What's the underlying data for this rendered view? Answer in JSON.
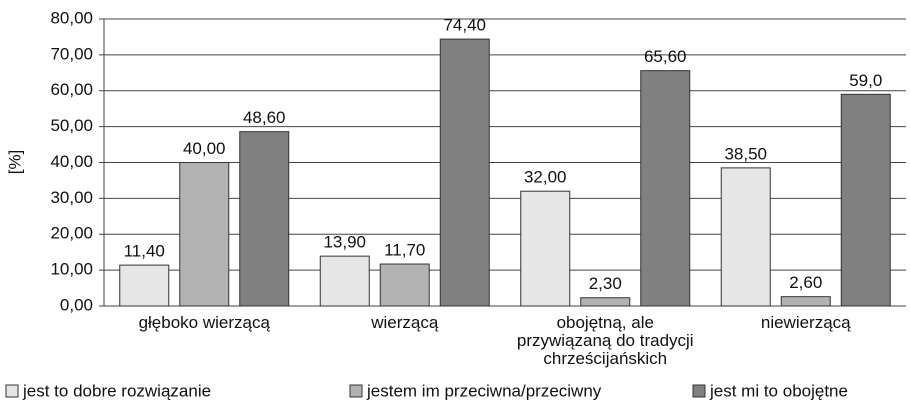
{
  "chart_data": {
    "type": "bar",
    "y_label": "[%]",
    "categories": [
      "głęboko wierzącą",
      "wierzącą",
      "obojętną, ale przywiązaną do tradycji chrześcijańskich",
      "niewierzącą"
    ],
    "series": [
      {
        "name": "jest to dobre rozwiązanie",
        "color": "#e6e6e6",
        "values": [
          11.4,
          13.9,
          32.0,
          38.5
        ],
        "value_labels": [
          "11,40",
          "13,90",
          "32,00",
          "38,50"
        ]
      },
      {
        "name": "jestem im przeciwna/przeciwny",
        "color": "#b2b2b2",
        "values": [
          40.0,
          11.7,
          2.3,
          2.6
        ],
        "value_labels": [
          "40,00",
          "11,70",
          "2,30",
          "2,60"
        ]
      },
      {
        "name": "jest mi to obojętne",
        "color": "#808080",
        "values": [
          48.6,
          74.4,
          65.6,
          59.0
        ],
        "value_labels": [
          "48,60",
          "74,40",
          "65,60",
          "59,0"
        ]
      }
    ],
    "ylim": [
      0,
      80
    ],
    "yticks": [
      {
        "value": 0,
        "label": "0,00"
      },
      {
        "value": 10,
        "label": "10,00"
      },
      {
        "value": 20,
        "label": "20,00"
      },
      {
        "value": 30,
        "label": "30,00"
      },
      {
        "value": 40,
        "label": "40,00"
      },
      {
        "value": 50,
        "label": "50,00"
      },
      {
        "value": 60,
        "label": "60,00"
      },
      {
        "value": 70,
        "label": "70,00"
      },
      {
        "value": 80,
        "label": "80,00"
      }
    ],
    "grid": true,
    "legend": "bottom"
  }
}
